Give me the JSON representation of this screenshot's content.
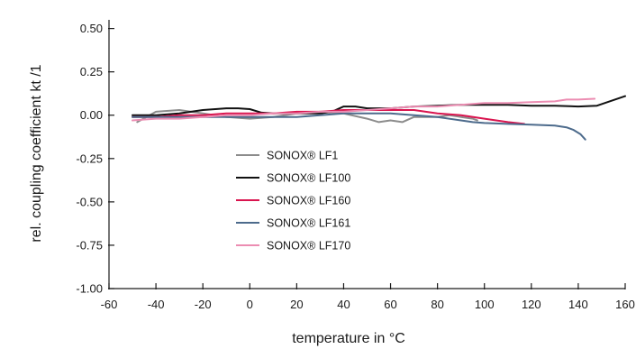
{
  "chart_data": {
    "type": "line",
    "xlabel": "temperature in °C",
    "ylabel": "rel. coupling coefficient kt /1",
    "xlim": [
      -60,
      160
    ],
    "ylim": [
      -1.0,
      0.55
    ],
    "x_ticks": [
      -60,
      -40,
      -20,
      0,
      20,
      40,
      60,
      80,
      100,
      120,
      140,
      160
    ],
    "x_tick_labels": [
      "-60",
      "-40",
      "-20",
      "0",
      "20",
      "40",
      "60",
      "80",
      "100",
      "120",
      "140",
      "160"
    ],
    "y_ticks": [
      0.5,
      0.25,
      0.0,
      -0.25,
      -0.5,
      -0.75,
      -1.0
    ],
    "y_tick_labels": [
      "0.50",
      "0.25",
      "0.00",
      "-0.25",
      "-0.50",
      "-0.75",
      "-1.00"
    ],
    "grid": false,
    "legend_position": "center-left",
    "series": [
      {
        "name": "SONOX® LF1",
        "color": "#8c8c8c",
        "x": [
          -48,
          -40,
          -30,
          -20,
          -10,
          0,
          10,
          20,
          30,
          40,
          50,
          55,
          60,
          65,
          70,
          75,
          80,
          85,
          90,
          95,
          97
        ],
        "y": [
          -0.04,
          0.02,
          0.03,
          0.01,
          -0.01,
          -0.02,
          -0.01,
          0.01,
          0.02,
          0.01,
          -0.02,
          -0.04,
          -0.03,
          -0.04,
          -0.01,
          -0.01,
          -0.01,
          0.0,
          -0.01,
          -0.02,
          -0.03
        ]
      },
      {
        "name": "SONOX® LF100",
        "color": "#111111",
        "x": [
          -50,
          -40,
          -30,
          -20,
          -10,
          -5,
          0,
          5,
          10,
          20,
          30,
          35,
          40,
          45,
          50,
          60,
          70,
          80,
          90,
          100,
          110,
          120,
          130,
          140,
          148,
          160
        ],
        "y": [
          0.0,
          0.0,
          0.01,
          0.03,
          0.04,
          0.04,
          0.035,
          0.015,
          0.01,
          0.01,
          0.01,
          0.02,
          0.05,
          0.05,
          0.04,
          0.04,
          0.05,
          0.055,
          0.06,
          0.06,
          0.06,
          0.055,
          0.055,
          0.05,
          0.055,
          0.11
        ]
      },
      {
        "name": "SONOX® LF160",
        "color": "#d9154f",
        "x": [
          -50,
          -40,
          -30,
          -20,
          -10,
          0,
          10,
          20,
          30,
          40,
          50,
          60,
          70,
          80,
          90,
          100,
          110,
          117
        ],
        "y": [
          -0.01,
          -0.01,
          0.0,
          0.0,
          0.01,
          0.01,
          0.01,
          0.02,
          0.02,
          0.03,
          0.03,
          0.03,
          0.03,
          0.01,
          0.0,
          -0.02,
          -0.04,
          -0.05
        ]
      },
      {
        "name": "SONOX® LF161",
        "color": "#4d6b8c",
        "x": [
          -50,
          -40,
          -30,
          -20,
          -10,
          0,
          10,
          20,
          30,
          40,
          50,
          60,
          70,
          80,
          90,
          95,
          100,
          110,
          120,
          130,
          135,
          138,
          141,
          143
        ],
        "y": [
          -0.01,
          -0.01,
          -0.01,
          -0.01,
          -0.01,
          -0.01,
          -0.01,
          -0.01,
          0.0,
          0.01,
          0.01,
          0.01,
          0.0,
          -0.01,
          -0.03,
          -0.04,
          -0.045,
          -0.05,
          -0.055,
          -0.06,
          -0.07,
          -0.085,
          -0.11,
          -0.14
        ]
      },
      {
        "name": "SONOX® LF170",
        "color": "#ec8db2",
        "x": [
          -50,
          -40,
          -30,
          -20,
          -10,
          0,
          10,
          20,
          30,
          40,
          50,
          60,
          70,
          80,
          90,
          100,
          110,
          120,
          130,
          135,
          140,
          147
        ],
        "y": [
          -0.03,
          -0.02,
          -0.02,
          -0.01,
          0.0,
          0.0,
          0.01,
          0.01,
          0.02,
          0.02,
          0.03,
          0.04,
          0.05,
          0.05,
          0.06,
          0.07,
          0.07,
          0.075,
          0.08,
          0.09,
          0.09,
          0.095
        ]
      }
    ]
  }
}
